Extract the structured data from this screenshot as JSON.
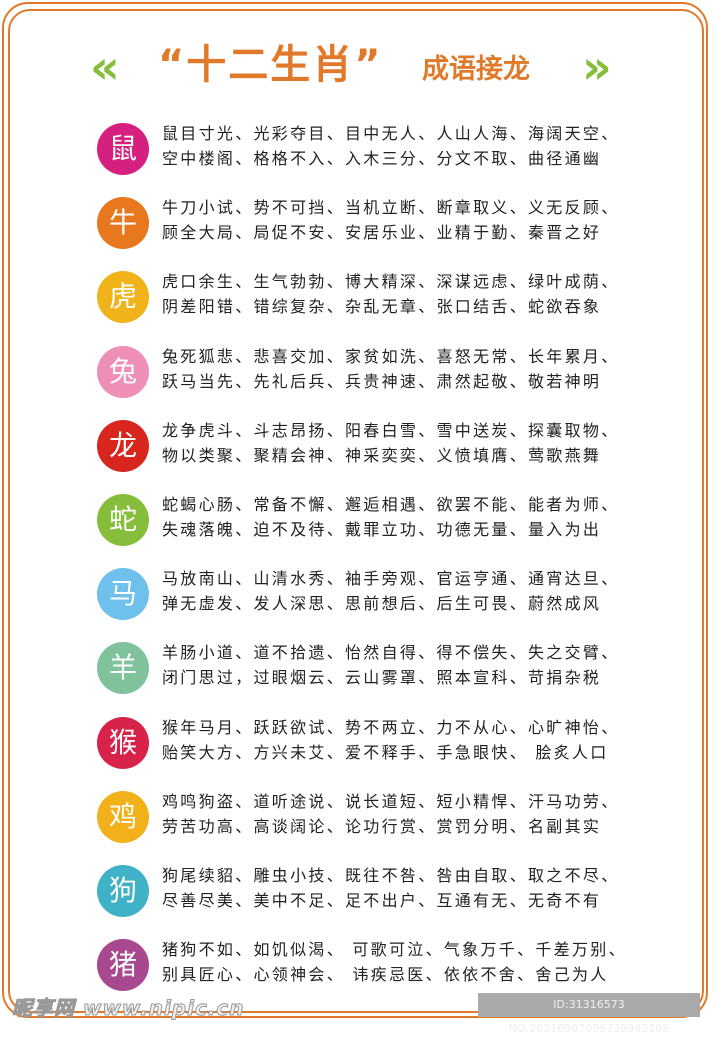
{
  "header": {
    "left_icon": "double-chevron-left-icon",
    "right_icon": "double-chevron-right-icon",
    "left_chevron": "«",
    "right_chevron": "»",
    "title_main": "“十二生肖”",
    "title_sub": "成语接龙",
    "accent_color": "#e07a2a",
    "chevron_color": "#86bd3a"
  },
  "rows": [
    {
      "animal": "鼠",
      "color": "#d6207f",
      "line1": "鼠目寸光、光彩夺目、目中无人、人山人海、海阔天空、",
      "line2": "空中楼阁、格格不入、入木三分、分文不取、曲径通幽"
    },
    {
      "animal": "牛",
      "color": "#e8781e",
      "line1": "牛刀小试、势不可挡、当机立断、断章取义、义无反顾、",
      "line2": "顾全大局、局促不安、安居乐业、业精于勤、秦晋之好"
    },
    {
      "animal": "虎",
      "color": "#f0b41a",
      "line1": "虎口余生、生气勃勃、博大精深、深谋远虑、绿叶成荫、",
      "line2": "阴差阳错、错综复杂、杂乱无章、张口结舌、蛇欲吞象"
    },
    {
      "animal": "兔",
      "color": "#ee8fb8",
      "line1": "兔死狐悲、悲喜交加、家贫如洗、喜怒无常、长年累月、",
      "line2": "跃马当先、先礼后兵、兵贵神速、肃然起敬、敬若神明"
    },
    {
      "animal": "龙",
      "color": "#d8261f",
      "line1": "龙争虎斗、斗志昂扬、阳春白雪、雪中送炭、探囊取物、",
      "line2": "物以类聚、聚精会神、神采奕奕、义愤填膺、莺歌燕舞"
    },
    {
      "animal": "蛇",
      "color": "#86bd3a",
      "line1": "蛇蝎心肠、常备不懈、邂逅相遇、欲罢不能、能者为师、",
      "line2": "失魂落魄、迫不及待、戴罪立功、功德无量、量入为出"
    },
    {
      "animal": "马",
      "color": "#6fc0ec",
      "line1": "马放南山、山清水秀、袖手旁观、官运亨通、通宵达旦、",
      "line2": "弹无虚发、发人深思、思前想后、后生可畏、蔚然成风"
    },
    {
      "animal": "羊",
      "color": "#7fc29b",
      "line1": "羊肠小道、道不拾遗、怡然自得、得不偿失、失之交臂、",
      "line2": "闭门思过，过眼烟云、云山雾罩、照本宣科、苛捐杂税"
    },
    {
      "animal": "猴",
      "color": "#d7224a",
      "line1": "猴年马月、跃跃欲试、势不两立、力不从心、心旷神怡、",
      "line2": "贻笑大方、方兴未艾、爱不释手、手急眼快、 脍炙人口"
    },
    {
      "animal": "鸡",
      "color": "#f2b01a",
      "line1": "鸡鸣狗盗、道听途说、说长道短、短小精悍、汗马功劳、",
      "line2": "劳苦功高、高谈阔论、论功行赏、赏罚分明、名副其实"
    },
    {
      "animal": "狗",
      "color": "#3fb2c7",
      "line1": "狗尾续貂、雕虫小技、既往不咎、咎由自取、取之不尽、",
      "line2": "尽善尽美、美中不足、足不出户、互通有无、无奇不有"
    },
    {
      "animal": "猪",
      "color": "#a8488f",
      "line1": "猪狗不如、如饥似渴、 可歌可泣、气象万千、千差万别、",
      "line2": "别具匠心、心领神会、 讳疾忌医、依依不舍、舍己为人"
    }
  ],
  "watermark": {
    "left": "昵享网 www.nipic.cn",
    "right": "ID:31316573 NO:20210907095739945105"
  }
}
